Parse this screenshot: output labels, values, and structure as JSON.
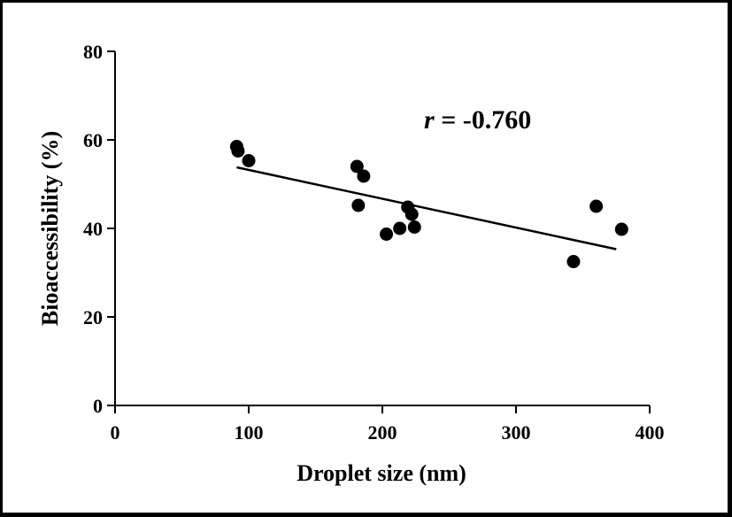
{
  "chart_data": {
    "type": "scatter",
    "xlabel": "Droplet size (nm)",
    "ylabel": "Bioaccessibility (%)",
    "xlim": [
      0,
      400
    ],
    "ylim": [
      0,
      80
    ],
    "xticks": [
      0,
      100,
      200,
      300,
      400
    ],
    "yticks": [
      0,
      20,
      40,
      60,
      80
    ],
    "grid": false,
    "annotation": {
      "var": "r",
      "text": " = -0.760"
    },
    "points": [
      {
        "x": 91,
        "y": 58.5
      },
      {
        "x": 92,
        "y": 57.5
      },
      {
        "x": 100,
        "y": 55.3
      },
      {
        "x": 181,
        "y": 54.0
      },
      {
        "x": 186,
        "y": 51.8
      },
      {
        "x": 182,
        "y": 45.2
      },
      {
        "x": 203,
        "y": 38.7
      },
      {
        "x": 213,
        "y": 40.0
      },
      {
        "x": 219,
        "y": 44.8
      },
      {
        "x": 222,
        "y": 43.2
      },
      {
        "x": 224,
        "y": 40.3
      },
      {
        "x": 343,
        "y": 32.5
      },
      {
        "x": 360,
        "y": 45.0
      },
      {
        "x": 379,
        "y": 39.8
      }
    ],
    "trendline": {
      "x": [
        91,
        375
      ],
      "y": [
        53.8,
        35.3
      ]
    }
  }
}
